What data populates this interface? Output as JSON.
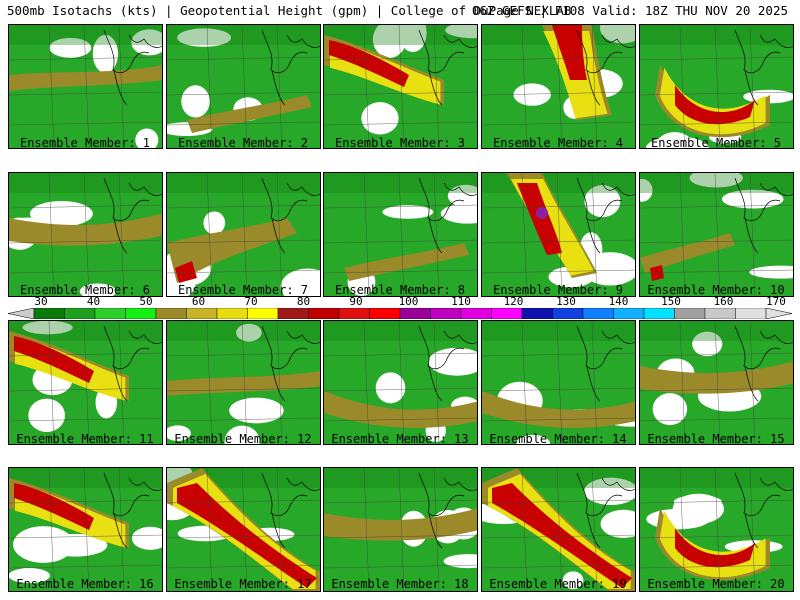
{
  "header": {
    "left": "500mb Isotachs (kts) | Geopotential Height (gpm) | College of DuPage NEXLAB",
    "right": "06Z GEFS | F108 Valid: 18Z THU NOV 20 2025"
  },
  "members": [
    {
      "label": "Ensemble Member: 1",
      "jet": "weak-north"
    },
    {
      "label": "Ensemble Member: 2",
      "jet": "weak-south"
    },
    {
      "label": "Ensemble Member: 3",
      "jet": "strong-nw"
    },
    {
      "label": "Ensemble Member: 4",
      "jet": "strong-north"
    },
    {
      "label": "Ensemble Member: 5",
      "jet": "strong-central"
    },
    {
      "label": "Ensemble Member: 6",
      "jet": "moderate-band"
    },
    {
      "label": "Ensemble Member: 7",
      "jet": "moderate-sw"
    },
    {
      "label": "Ensemble Member: 8",
      "jet": "weak-south"
    },
    {
      "label": "Ensemble Member: 9",
      "jet": "strong-west-core"
    },
    {
      "label": "Ensemble Member: 10",
      "jet": "weak-sw"
    },
    {
      "label": "Ensemble Member: 11",
      "jet": "strong-nw"
    },
    {
      "label": "Ensemble Member: 12",
      "jet": "weak"
    },
    {
      "label": "Ensemble Member: 13",
      "jet": "moderate-south"
    },
    {
      "label": "Ensemble Member: 14",
      "jet": "moderate-south"
    },
    {
      "label": "Ensemble Member: 15",
      "jet": "moderate-band"
    },
    {
      "label": "Ensemble Member: 16",
      "jet": "strong-nw"
    },
    {
      "label": "Ensemble Member: 17",
      "jet": "strong-diagonal"
    },
    {
      "label": "Ensemble Member: 18",
      "jet": "moderate-band"
    },
    {
      "label": "Ensemble Member: 19",
      "jet": "strong-diagonal"
    },
    {
      "label": "Ensemble Member: 20",
      "jet": "strong-central"
    }
  ],
  "colorbar": {
    "labels": [
      "30",
      "40",
      "50",
      "60",
      "70",
      "80",
      "90",
      "100",
      "110",
      "120",
      "130",
      "140",
      "150",
      "160",
      "170"
    ],
    "colors": [
      "#0a7a0a",
      "#1ea01e",
      "#2ccf2c",
      "#14f014",
      "#9a8a2a",
      "#c8b428",
      "#e8dc10",
      "#ffff00",
      "#a01818",
      "#c00000",
      "#e01010",
      "#ff0000",
      "#9a0098",
      "#c000c0",
      "#e000e0",
      "#ff00ff",
      "#1010b0",
      "#1040e0",
      "#1080ff",
      "#10b0ff",
      "#00e0ff",
      "#a0a0a0",
      "#c8c8c8",
      "#e0e0e0"
    ]
  },
  "colors": {
    "green_dark": "#0d7d0d",
    "green_mid": "#28a828",
    "green_light": "#3cd23c",
    "olive": "#9a8a2a",
    "yellow": "#e8e010",
    "red": "#c80000",
    "darkred": "#960000",
    "purple": "#8c20a0"
  }
}
